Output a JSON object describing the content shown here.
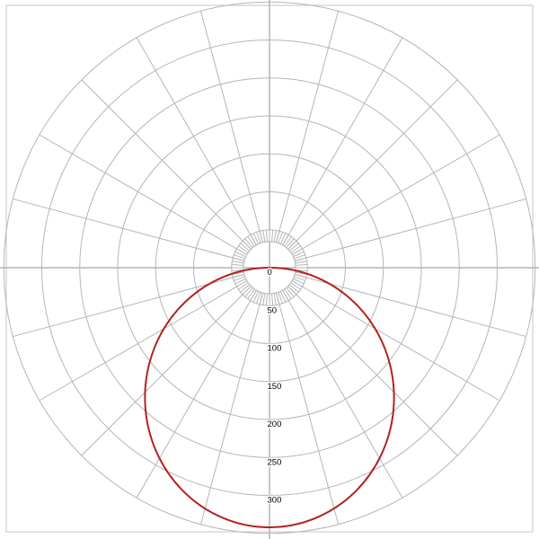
{
  "chart_data": {
    "type": "line",
    "subtype": "polar_photometric_intensity_diagram",
    "title": "",
    "radial_axis": {
      "tick_values": [
        0,
        50,
        100,
        150,
        200,
        250,
        300
      ],
      "tick_labels": [
        "0",
        "50",
        "100",
        "150",
        "200",
        "250",
        "300"
      ],
      "ring_values": [
        50,
        100,
        150,
        200,
        250,
        300,
        350
      ],
      "rlim": [
        0,
        350
      ],
      "tick_label_direction": "down"
    },
    "angular_axis": {
      "major_step_deg": 15,
      "minor_step_deg": 5,
      "zero_direction": "down",
      "range_deg": [
        0,
        360
      ]
    },
    "series": [
      {
        "name": "luminous_intensity_curve",
        "color": "#b22222",
        "theta_deg": [
          -90,
          -75,
          -60,
          -45,
          -30,
          -15,
          0,
          15,
          30,
          45,
          60,
          75,
          90
        ],
        "values": [
          0,
          82,
          160,
          232,
          290,
          328,
          342,
          328,
          290,
          232,
          160,
          82,
          0
        ]
      }
    ],
    "grid": {
      "on": true,
      "color": "#b5b5b5",
      "axis_color": "#8f8f8f"
    },
    "legend_position": "none"
  },
  "frame": {
    "border_color": "#c6c6c6"
  },
  "background_color": "#ffffff"
}
